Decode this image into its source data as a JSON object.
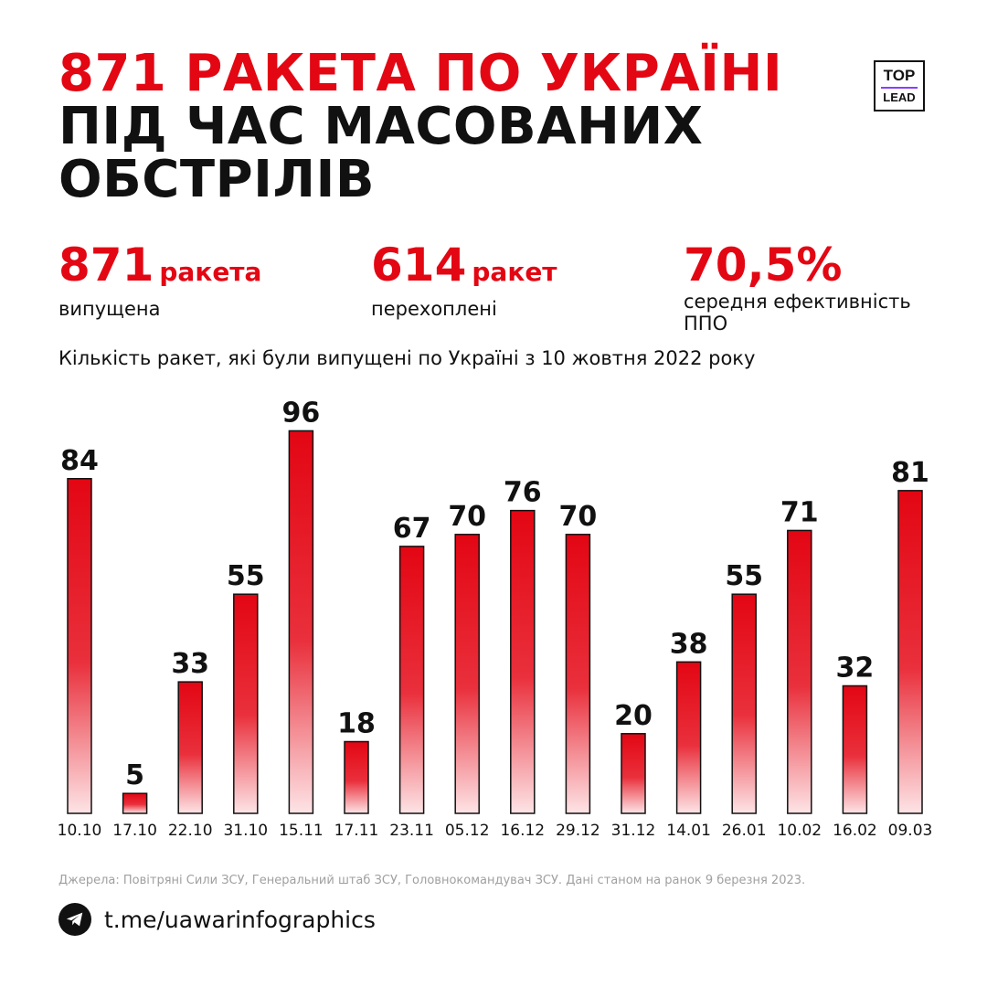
{
  "title": {
    "line1": "871 РАКЕТА ПО УКРАЇНІ",
    "line2": "ПІД ЧАС МАСОВАНИХ",
    "line3": "ОБСТРІЛІВ"
  },
  "logo": {
    "top": "TOP",
    "bottom": "LEAD"
  },
  "stats": [
    {
      "number": "871",
      "unit": "ракета",
      "desc": "випущена"
    },
    {
      "number": "614",
      "unit": "ракет",
      "desc": "перехоплені"
    },
    {
      "number": "70,5%",
      "unit": "",
      "desc": "середня ефективність ППО"
    }
  ],
  "subtitle": "Кількість ракет, які були випущені по Україні з 10 жовтня 2022 року",
  "chart_data": {
    "type": "bar",
    "title": "",
    "categories": [
      "10.10",
      "17.10",
      "22.10",
      "31.10",
      "15.11",
      "17.11",
      "23.11",
      "05.12",
      "16.12",
      "29.12",
      "31.12",
      "14.01",
      "26.01",
      "10.02",
      "16.02",
      "09.03"
    ],
    "values": [
      84,
      5,
      33,
      55,
      96,
      18,
      67,
      70,
      76,
      70,
      20,
      38,
      55,
      71,
      32,
      81
    ],
    "ylim": [
      0,
      96
    ],
    "grid": false,
    "bar_color": "#e30613"
  },
  "footer": {
    "sources": "Джерела: Повітряні Сили ЗСУ, Генеральний штаб ЗСУ, Головнокомандувач ЗСУ. Дані станом на ранок 9 березня 2023.",
    "link": "t.me/uawarinfographics",
    "link_icon": "telegram-icon"
  }
}
